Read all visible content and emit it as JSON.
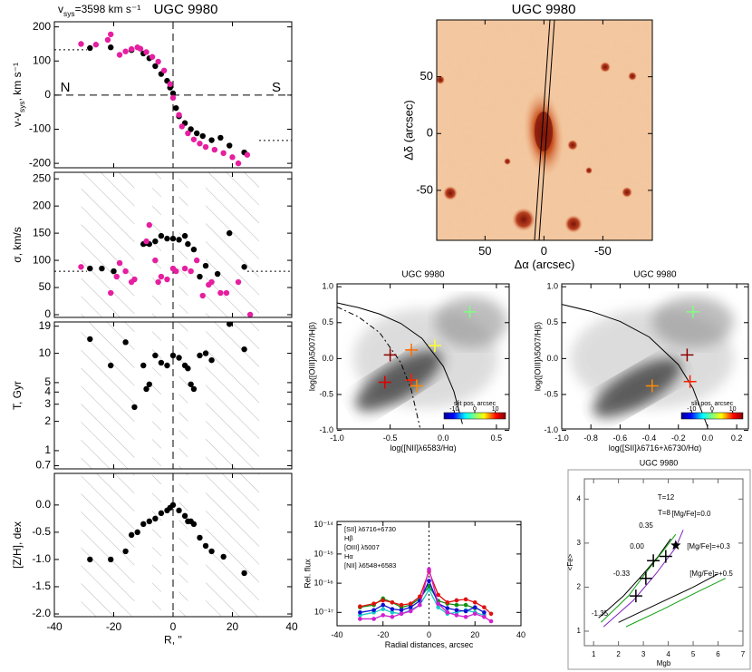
{
  "chart_data": [
    {
      "type": "scatter",
      "title": "UGC 9980",
      "vsys_label": [
        "v",
        "sys",
        "=3598 km s⁻¹"
      ],
      "ylabel": [
        "v-v",
        "sys",
        ", km s⁻¹"
      ],
      "annotations": [
        "N",
        "S"
      ],
      "xlim": [
        -40,
        40
      ],
      "ylim": [
        -213,
        215
      ],
      "xticks": [
        -40,
        -20,
        0,
        20,
        40
      ],
      "xtick_labels": false,
      "yticks": [
        -200,
        -100,
        0,
        100,
        200
      ],
      "vlines": [
        {
          "x": 0,
          "style": "dashed"
        }
      ],
      "hlines": [
        {
          "y": 0,
          "style": "dashed"
        }
      ],
      "hsegments": [
        {
          "x": [
            -40,
            -29
          ],
          "y": 133,
          "style": "dotted"
        },
        {
          "x": [
            29,
            40
          ],
          "y": -133,
          "style": "dotted"
        }
      ],
      "series": [
        {
          "color": "#000000",
          "x": [
            -28,
            -21,
            -14,
            -10,
            -8,
            -6,
            -4,
            -2,
            -1,
            0,
            1,
            2,
            4,
            6,
            8,
            10,
            13,
            16,
            19,
            24
          ],
          "values": [
            138,
            140,
            132,
            122,
            108,
            85,
            62,
            42,
            22,
            5,
            -38,
            -62,
            -82,
            -100,
            -112,
            -120,
            -132,
            -125,
            -148,
            -168
          ]
        },
        {
          "color": "#e61ea0",
          "x": [
            -31,
            -26,
            -22,
            -21,
            -18,
            -16,
            -14,
            -12,
            -11,
            -9,
            -7,
            -5,
            -3,
            -1,
            0,
            2,
            3,
            5,
            7,
            9,
            11,
            14,
            17,
            20,
            22,
            25
          ],
          "values": [
            150,
            148,
            162,
            178,
            118,
            128,
            135,
            140,
            136,
            126,
            112,
            98,
            72,
            32,
            -8,
            -58,
            -92,
            -112,
            -130,
            -142,
            -152,
            -160,
            -170,
            -182,
            -200,
            -175
          ]
        }
      ]
    },
    {
      "type": "scatter",
      "ylabel": "σ, km/s",
      "xlim": [
        -40,
        40
      ],
      "ylim": [
        -5,
        262
      ],
      "xticks": [
        -40,
        -20,
        0,
        20,
        40
      ],
      "xtick_labels": false,
      "yticks": [
        0,
        50,
        100,
        150,
        200,
        250
      ],
      "shaded_x_ranges": [
        [
          -31,
          -13
        ],
        [
          -7,
          -4
        ],
        [
          2,
          5
        ],
        [
          11,
          29
        ]
      ],
      "vlines": [
        {
          "x": 0,
          "style": "dashed"
        }
      ],
      "hsegments": [
        {
          "x": [
            -40,
            -29
          ],
          "y": 80,
          "style": "dotted"
        },
        {
          "x": [
            25,
            40
          ],
          "y": 80,
          "style": "dotted"
        }
      ],
      "series": [
        {
          "color": "#000000",
          "x": [
            -28,
            -24,
            -20,
            -10,
            -9,
            -8,
            -6,
            -4,
            -2,
            0,
            2,
            4,
            5,
            7,
            9,
            11,
            15,
            19,
            24
          ],
          "values": [
            85,
            85,
            80,
            130,
            132,
            130,
            135,
            145,
            140,
            140,
            138,
            145,
            130,
            120,
            70,
            90,
            75,
            150,
            88
          ]
        },
        {
          "color": "#e61ea0",
          "x": [
            -31,
            -21,
            -19,
            -18,
            -16,
            -14,
            -13,
            -9,
            -8,
            -6,
            -5,
            -4,
            -2,
            0,
            1,
            4,
            6,
            8,
            10,
            12,
            13,
            16,
            18,
            22,
            26
          ],
          "values": [
            88,
            40,
            70,
            95,
            80,
            60,
            65,
            135,
            165,
            100,
            60,
            70,
            65,
            85,
            80,
            85,
            80,
            100,
            35,
            55,
            60,
            40,
            40,
            60,
            0
          ]
        }
      ]
    },
    {
      "type": "scatter",
      "ylabel": "T, Gyr",
      "ylog": true,
      "xlim": [
        -40,
        40
      ],
      "ylim": [
        0.65,
        21
      ],
      "xticks": [
        -40,
        -20,
        0,
        20,
        40
      ],
      "xtick_labels": false,
      "yticks": [
        0.7,
        1,
        2,
        3,
        4,
        5,
        10,
        19
      ],
      "shaded_x_ranges": [
        [
          -31,
          -13
        ],
        [
          -7,
          -4
        ],
        [
          2,
          5
        ],
        [
          11,
          29
        ]
      ],
      "vlines": [
        {
          "x": 0,
          "style": "dashed"
        }
      ],
      "series": [
        {
          "color": "#000000",
          "x": [
            -28,
            -21,
            -16,
            -13,
            -10,
            -9,
            -8,
            -6,
            -4,
            -2,
            0,
            2,
            4,
            5,
            6,
            7,
            9,
            11,
            13,
            19,
            24
          ],
          "values": [
            14,
            7.5,
            13,
            2.8,
            7.5,
            4.3,
            4.8,
            9.5,
            8,
            7.5,
            9.5,
            9,
            7.5,
            7,
            4.8,
            4.3,
            9.5,
            10,
            8.5,
            20,
            11
          ]
        }
      ]
    },
    {
      "type": "scatter",
      "ylabel": "[Z/H], dex",
      "xlabel": "R, ''",
      "xlim": [
        -40,
        40
      ],
      "ylim": [
        -2.05,
        0.58
      ],
      "xticks": [
        -40,
        -20,
        0,
        20,
        40
      ],
      "yticks": [
        {
          "value": 0,
          "label": "0.0"
        },
        {
          "value": -0.5,
          "label": "-0.5"
        },
        {
          "value": -1,
          "label": "-1.0"
        },
        {
          "value": -1.5,
          "label": "-1.5"
        },
        {
          "value": -2,
          "label": "-2.0"
        }
      ],
      "shaded_x_ranges": [
        [
          -31,
          -13
        ],
        [
          -7,
          -4
        ],
        [
          2,
          5
        ],
        [
          11,
          29
        ]
      ],
      "vlines": [
        {
          "x": 0,
          "style": "dashed"
        }
      ],
      "series": [
        {
          "color": "#000000",
          "x": [
            -28,
            -21,
            -16,
            -14,
            -12,
            -10,
            -8,
            -6,
            -4,
            -2,
            -1,
            0,
            2,
            4,
            5,
            6,
            7,
            9,
            11,
            13,
            17,
            24
          ],
          "values": [
            -1.0,
            -1.0,
            -0.85,
            -0.55,
            -0.5,
            -0.35,
            -0.3,
            -0.25,
            -0.15,
            -0.1,
            -0.05,
            0.0,
            -0.1,
            -0.2,
            -0.3,
            -0.3,
            -0.35,
            -0.6,
            -0.75,
            -0.85,
            -0.95,
            -1.25
          ]
        }
      ]
    },
    {
      "type": "image",
      "title": "UGC 9980",
      "xlabel": "Δα (arcsec)",
      "ylabel": "Δδ (arcsec)",
      "xlim": [
        91,
        -92
      ],
      "ylim": [
        -94,
        100
      ],
      "xticks": [
        50,
        0,
        -50
      ],
      "yticks": [
        50,
        0,
        -50
      ]
    },
    {
      "type": "scatter",
      "title": "UGC 9980",
      "xlabel": "log([NII]λ6583/Hα)",
      "ylabel": "log([OIII]λ5007/Hβ)",
      "xlim": [
        -1.0,
        0.62
      ],
      "ylim": [
        -0.98,
        1.04
      ],
      "xticks": [
        {
          "value": -1,
          "label": "-1.0"
        },
        {
          "value": -0.5,
          "label": "-0.5"
        },
        {
          "value": 0,
          "label": "0.0"
        },
        {
          "value": 0.5,
          "label": "0.5"
        }
      ],
      "yticks": [
        {
          "value": 1,
          "label": "1.0"
        },
        {
          "value": 0.5,
          "label": "0.5"
        },
        {
          "value": 0,
          "label": "0.0"
        },
        {
          "value": -0.5,
          "label": "-0.5"
        },
        {
          "value": -1,
          "label": "-1.0"
        }
      ],
      "lines": [
        {
          "style": "solid",
          "x": [
            -1.0,
            -0.8,
            -0.6,
            -0.4,
            -0.2,
            0.0,
            0.1,
            0.18
          ],
          "y": [
            0.775,
            0.71,
            0.62,
            0.489,
            0.28,
            -0.108,
            -0.459,
            -0.91
          ]
        },
        {
          "style": "dashdot",
          "x": [
            -1.0,
            -0.8,
            -0.6,
            -0.4,
            -0.3,
            -0.22
          ],
          "y": [
            0.719,
            0.582,
            0.362,
            -0.056,
            -0.443,
            -0.959
          ]
        }
      ],
      "colorbar": {
        "label": "slit pos, arcsec",
        "lim": [
          -15,
          15
        ],
        "ticks": [
          -10,
          0,
          10
        ]
      },
      "series": [
        {
          "marker": "cross",
          "x": [
            -0.5,
            -0.3,
            -0.08,
            0.25,
            -0.55,
            -0.3,
            -0.25
          ],
          "values": [
            0.05,
            0.12,
            0.18,
            0.65,
            -0.33,
            -0.3,
            -0.38
          ],
          "colors": [
            "#8b0000",
            "#ff6a00",
            "#ffff33",
            "#7fff7f",
            "#e00000",
            "#ff2000",
            "#ff8c00"
          ]
        }
      ]
    },
    {
      "type": "scatter",
      "title": "UGC 9980",
      "xlabel": "log([SII]λ6716+λ6730/Hα)",
      "ylabel": "log([OIII]λ5007/Hβ)",
      "xlim": [
        -1.0,
        0.28
      ],
      "ylim": [
        -0.98,
        1.04
      ],
      "xticks": [
        {
          "value": -1,
          "label": "-1.0"
        },
        {
          "value": -0.8,
          "label": "-0.8"
        },
        {
          "value": -0.6,
          "label": "-0.6"
        },
        {
          "value": -0.4,
          "label": "-0.4"
        },
        {
          "value": -0.2,
          "label": "-0.2"
        },
        {
          "value": 0,
          "label": "0.0"
        },
        {
          "value": 0.2,
          "label": "0.2"
        }
      ],
      "yticks": [
        {
          "value": 1,
          "label": "1.0"
        },
        {
          "value": 0.5,
          "label": "0.5"
        },
        {
          "value": 0,
          "label": "0.0"
        },
        {
          "value": -0.5,
          "label": "-0.5"
        },
        {
          "value": -1,
          "label": "-1.0"
        }
      ],
      "lines": [
        {
          "style": "solid",
          "x": [
            -1.0,
            -0.8,
            -0.6,
            -0.4,
            -0.2,
            -0.1,
            0.0
          ],
          "y": [
            0.755,
            0.657,
            0.517,
            0.3,
            -0.085,
            -0.414,
            -0.95
          ]
        }
      ],
      "colorbar": {
        "label": "slit pos, arcsec",
        "lim": [
          -15,
          15
        ],
        "ticks": [
          -10,
          0,
          10
        ]
      },
      "series": [
        {
          "marker": "cross",
          "x": [
            -0.14,
            -0.12,
            -0.38,
            -0.1
          ],
          "values": [
            0.05,
            -0.32,
            -0.38,
            0.65
          ],
          "colors": [
            "#8b0000",
            "#ff2000",
            "#ff8c00",
            "#7fff7f"
          ]
        }
      ]
    },
    {
      "type": "line",
      "xlabel": "Radial distances, arcsec",
      "ylabel": "Rel. flux",
      "ylog": true,
      "xlim": [
        -40,
        40
      ],
      "ylim": [
        3.5e-18,
        1.3e-14
      ],
      "xticks": [
        -40,
        -20,
        0,
        20,
        40
      ],
      "yticks": [
        {
          "value": 1e-14,
          "label": "10⁻¹⁴"
        },
        {
          "value": 1e-15,
          "label": "10⁻¹⁵"
        },
        {
          "value": 1e-16,
          "label": "10⁻¹⁶"
        },
        {
          "value": 1e-17,
          "label": "10⁻¹⁷"
        }
      ],
      "vlines": [
        {
          "x": 0,
          "style": "dotted"
        }
      ],
      "x": [
        -30,
        -24,
        -20,
        -16,
        -12,
        -8,
        -4,
        0,
        4,
        8,
        12,
        16,
        20,
        24,
        27
      ],
      "series": [
        {
          "name": "[SII] λ6716+6730",
          "color": "#1ec8c8",
          "values": [
            8e-18,
            1e-17,
            1.3e-17,
            1e-17,
            9e-18,
            1.2e-17,
            1.8e-17,
            6e-17,
            1.5e-17,
            9e-18,
            1e-17,
            1.2e-17,
            1e-17,
            8e-18,
            null
          ]
        },
        {
          "name": "Hβ",
          "color": "#109010",
          "values": [
            1.5e-17,
            1.8e-17,
            3e-17,
            2.2e-17,
            1.5e-17,
            1.8e-17,
            3e-17,
            8e-17,
            2.5e-17,
            2e-17,
            1.8e-17,
            1.8e-17,
            1.4e-17,
            null,
            null
          ]
        },
        {
          "name": "[OIII] λ5007",
          "color": "#1010d0",
          "values": [
            1e-17,
            1.2e-17,
            1.8e-17,
            1.3e-17,
            1.2e-17,
            1.5e-17,
            2.5e-17,
            1.2e-16,
            2e-17,
            1.4e-17,
            1.2e-17,
            1.1e-17,
            1.5e-17,
            1e-17,
            null
          ]
        },
        {
          "name": "Hα",
          "color": "#e01010",
          "values": [
            1.6e-17,
            2e-17,
            2.6e-17,
            2.2e-17,
            1.8e-17,
            2e-17,
            3.5e-17,
            2.5e-16,
            4e-17,
            2.2e-17,
            2.6e-17,
            2.8e-17,
            2.2e-17,
            1.5e-17,
            9e-18
          ]
        },
        {
          "name": "[NII] λ6548+6583",
          "color": "#d020d0",
          "values": [
            6e-18,
            6e-18,
            8e-18,
            7e-18,
            9e-18,
            1.1e-17,
            1.8e-17,
            3e-16,
            2e-17,
            1e-17,
            8e-18,
            7e-18,
            9e-18,
            7e-18,
            5e-18
          ]
        }
      ]
    },
    {
      "type": "scatter",
      "title": "UGC 9980",
      "xlabel": "Mgb",
      "ylabel": "<Fe>",
      "xlim": [
        0.63,
        7.0
      ],
      "ylim": [
        0.67,
        4.46
      ],
      "xticks": [
        1,
        2,
        3,
        4,
        5,
        6,
        7
      ],
      "yticks": [
        1,
        2,
        3,
        4
      ],
      "annotations": [
        "T=12",
        "T=8",
        "[Mg/Fe]=0.0",
        "[Mg/Fe]=+0.3",
        "[Mg/Fe]=+0.5",
        "0.35",
        "0.00",
        "-0.33",
        "-1.35"
      ],
      "annotation_colors": [
        "#8020c0",
        "#10a010",
        "#000000",
        "#000000",
        "#000000",
        "#000000",
        "#000000",
        "#000000",
        "#000000"
      ],
      "lines": [
        {
          "style": "solid",
          "color": "#000000",
          "x": [
            1.2,
            2.2,
            3.0,
            3.6,
            4.1
          ],
          "y": [
            1.3,
            1.8,
            2.3,
            2.7,
            3.1
          ]
        },
        {
          "style": "solid",
          "color": "#10a010",
          "x": [
            1.3,
            2.4,
            3.2,
            3.9,
            4.3
          ],
          "y": [
            1.2,
            1.8,
            2.4,
            2.9,
            3.2
          ]
        },
        {
          "style": "solid",
          "color": "#8020c0",
          "x": [
            1.4,
            2.6,
            3.5,
            4.3,
            4.6
          ],
          "y": [
            1.1,
            1.7,
            2.3,
            2.9,
            3.3
          ]
        },
        {
          "style": "solid",
          "color": "#000000",
          "x": [
            2.0,
            3.5,
            5.0,
            6.0
          ],
          "y": [
            1.2,
            1.6,
            2.0,
            2.3
          ]
        },
        {
          "style": "solid",
          "color": "#10a010",
          "x": [
            2.3,
            3.8,
            5.2,
            6.3
          ],
          "y": [
            1.1,
            1.5,
            1.9,
            2.2
          ]
        }
      ],
      "series": [
        {
          "marker": "cross",
          "color": "#000000",
          "x": [
            3.4,
            3.1,
            2.7,
            3.9
          ],
          "values": [
            2.6,
            2.2,
            1.8,
            2.7
          ]
        },
        {
          "marker": "star",
          "color": "#000000",
          "x": [
            4.3
          ],
          "values": [
            2.95
          ]
        }
      ]
    }
  ]
}
